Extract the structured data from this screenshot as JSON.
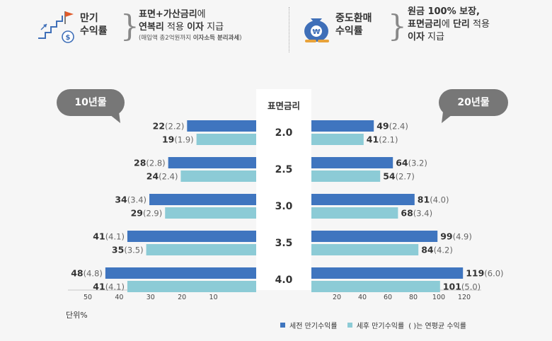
{
  "header": {
    "left": {
      "title_line1": "만기",
      "title_line2": "수익률",
      "text_line1_b": "표면+가산금리",
      "text_line1_rest": "에",
      "text_line2_b1": "연복리",
      "text_line2_mid": " 적용 ",
      "text_line2_b2": "이자",
      "text_line2_end": " 지급",
      "note_pre": "(매입액 총2억원까지 ",
      "note_b": "이자소득 분리과세",
      "note_post": ")"
    },
    "right": {
      "title_line1": "중도환매",
      "title_line2": "수익률",
      "text_line1": "원금 100% 보장,",
      "text_line2_b1": "표면금리",
      "text_line2_mid": "에 ",
      "text_line2_b2": "단리",
      "text_line2_end": " 적용",
      "text_line3_b": "이자",
      "text_line3_end": " 지급"
    }
  },
  "chart_data": {
    "type": "bar",
    "center_header": "표면금리",
    "categories": [
      "2.0",
      "2.5",
      "3.0",
      "3.5",
      "4.0"
    ],
    "left_panel": {
      "title": "10년물",
      "series": [
        {
          "name": "세전 만기수익률",
          "values": [
            22,
            28,
            34,
            41,
            48
          ],
          "annual": [
            "2.2",
            "2.8",
            "3.4",
            "4.1",
            "4.8"
          ]
        },
        {
          "name": "세후 만기수익률",
          "values": [
            19,
            24,
            29,
            35,
            41
          ],
          "annual": [
            "1.9",
            "2.4",
            "2.9",
            "3.5",
            "4.1"
          ]
        }
      ],
      "ticks": [
        50,
        40,
        30,
        20,
        10
      ],
      "xlim": [
        0,
        50
      ]
    },
    "right_panel": {
      "title": "20년물",
      "series": [
        {
          "name": "세전 만기수익률",
          "values": [
            49,
            64,
            81,
            99,
            119
          ],
          "annual": [
            "2.4",
            "3.2",
            "4.0",
            "4.9",
            "6.0"
          ]
        },
        {
          "name": "세후 만기수익률",
          "values": [
            41,
            54,
            68,
            84,
            101
          ],
          "annual": [
            "2.1",
            "2.7",
            "3.4",
            "4.2",
            "5.0"
          ]
        }
      ],
      "ticks": [
        20,
        40,
        60,
        80,
        100,
        120
      ],
      "xlim": [
        0,
        120
      ]
    },
    "unit_label": "단위%",
    "legend_note": "( )는 연평균 수익률",
    "colors": {
      "pre_tax": "#3f75bf",
      "post_tax": "#8ccbd6"
    }
  }
}
